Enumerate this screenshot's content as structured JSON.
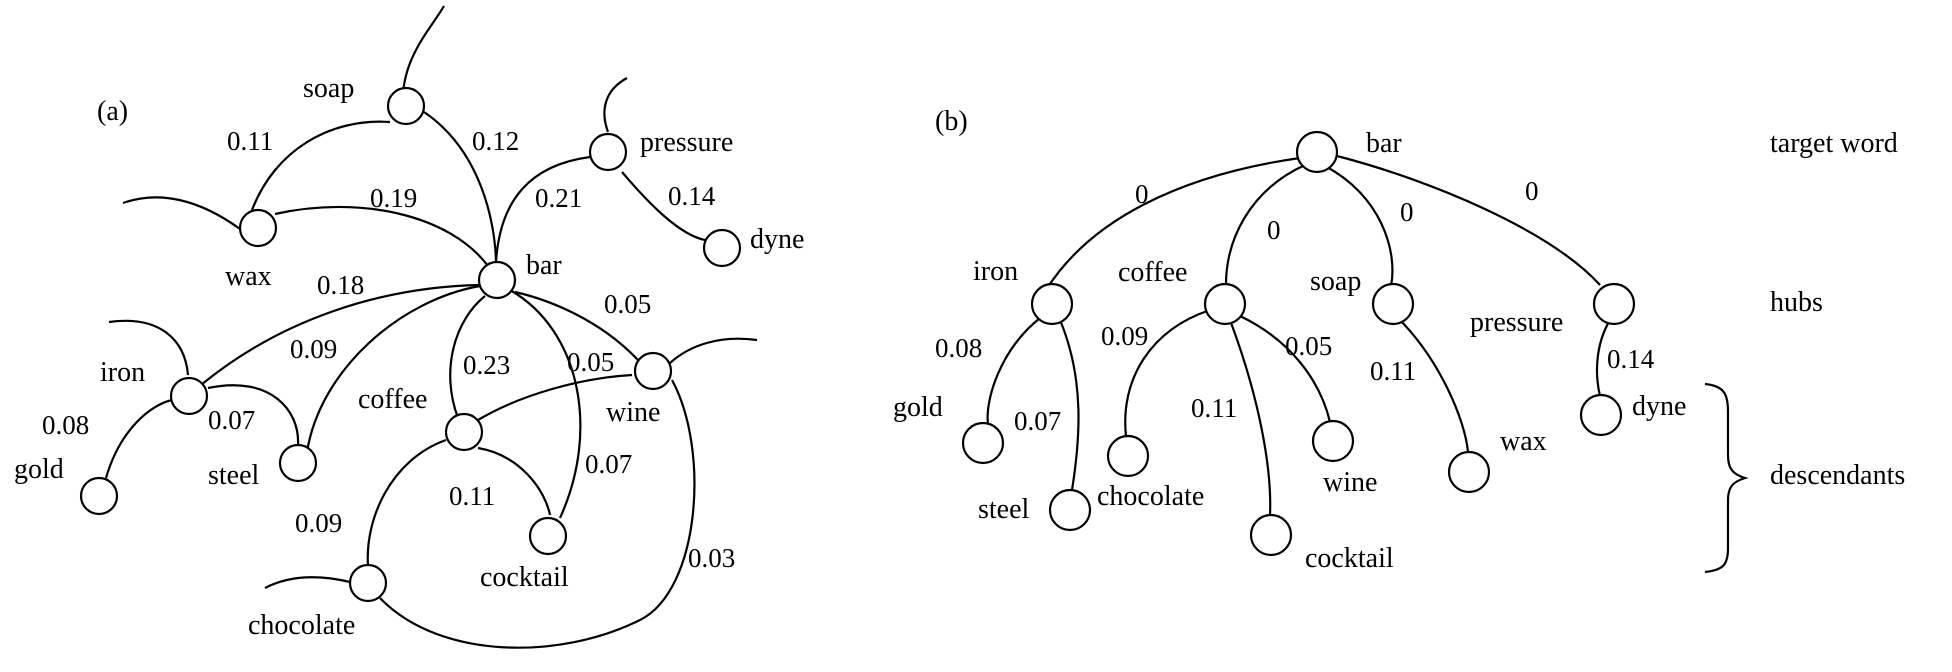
{
  "panel_a": {
    "label": "(a)",
    "nodes": {
      "soap": "soap",
      "pressure": "pressure",
      "wax": "wax",
      "dyne": "dyne",
      "bar": "bar",
      "iron": "iron",
      "wine": "wine",
      "coffee": "coffee",
      "gold": "gold",
      "steel": "steel",
      "cocktail": "cocktail",
      "chocolate": "chocolate"
    },
    "weights": {
      "wax_soap": "0.11",
      "soap_bar": "0.12",
      "wax_bar": "0.19",
      "pressure_bar": "0.21",
      "pressure_dyne": "0.14",
      "iron_bar": "0.18",
      "steel_bar": "0.09",
      "coffee_bar": "0.23",
      "wine_bar": "0.05",
      "coffee_wine": "0.05",
      "iron_gold": "0.08",
      "iron_steel": "0.07",
      "coffee_cocktail": "0.11",
      "cocktail_bar": "0.07",
      "coffee_chocolate": "0.09",
      "chocolate_wine": "0.03"
    }
  },
  "panel_b": {
    "label": "(b)",
    "nodes": {
      "bar": "bar",
      "iron": "iron",
      "coffee": "coffee",
      "soap": "soap",
      "pressure": "pressure",
      "gold": "gold",
      "steel": "steel",
      "chocolate": "chocolate",
      "cocktail": "cocktail",
      "wine": "wine",
      "wax": "wax",
      "dyne": "dyne"
    },
    "weights": {
      "bar_iron": "0",
      "bar_coffee": "0",
      "bar_soap": "0",
      "bar_pressure": "0",
      "iron_gold": "0.08",
      "iron_steel": "0.07",
      "coffee_chocolate": "0.09",
      "coffee_cocktail": "0.11",
      "coffee_wine": "0.05",
      "soap_wax": "0.11",
      "pressure_dyne": "0.14"
    },
    "levels": {
      "target": "target word",
      "hubs": "hubs",
      "descendants": "descendants"
    }
  }
}
